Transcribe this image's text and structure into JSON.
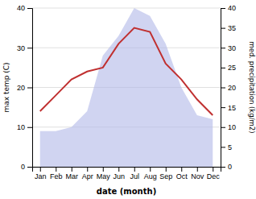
{
  "chart_data": {
    "type": "line",
    "categories": [
      "Jan",
      "Feb",
      "Mar",
      "Apr",
      "May",
      "Jun",
      "Jul",
      "Aug",
      "Sep",
      "Oct",
      "Nov",
      "Dec"
    ],
    "series": [
      {
        "type": "area",
        "axis": "y2",
        "color": "#b0b8e8",
        "values": [
          9,
          9,
          10,
          14,
          28,
          33,
          40,
          38,
          31,
          20,
          13,
          12
        ]
      },
      {
        "type": "line",
        "color": "#c03030",
        "values": [
          14,
          18,
          22,
          24,
          25,
          31,
          35,
          34,
          26,
          22,
          17,
          13
        ]
      }
    ],
    "xlabel": "date (month)",
    "ylabel": "max temp (C)",
    "y2label": "med. precipitation (kg/m2)",
    "ylim": [
      0,
      40
    ],
    "yticks": [
      0,
      10,
      20,
      30,
      40
    ],
    "y2lim": [
      0,
      40
    ],
    "y2ticks": [
      0,
      5,
      10,
      15,
      20,
      25,
      30,
      35,
      40
    ],
    "grid": true
  }
}
